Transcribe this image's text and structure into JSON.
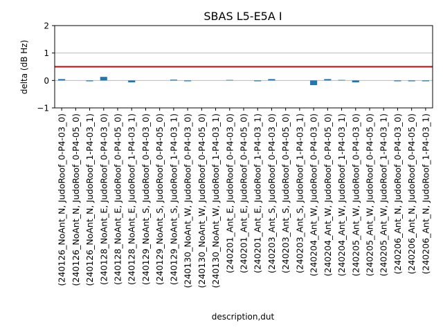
{
  "chart_data": {
    "type": "bar",
    "title": "SBAS L5-E5A I",
    "xlabel": "description,dut",
    "ylabel": "delta (dB Hz)",
    "ylim": [
      -1,
      2
    ],
    "yticks": [
      "−1",
      "0",
      "1",
      "2"
    ],
    "grid": "horizontal",
    "reference_line": {
      "y": 0.5,
      "color": "#cc0000"
    },
    "bar_color": "#1f77b4",
    "categories": [
      "(240126_NoAnt_N, JudoRoof_0-P4-03_0)",
      "(240126_NoAnt_N, JudoRoof_0-P4-05_0)",
      "(240126_NoAnt_N, JudoRoof_1-P4-03_1)",
      "(240128_NoAnt_E, JudoRoof_0-P4-03_0)",
      "(240128_NoAnt_E, JudoRoof_0-P4-05_0)",
      "(240128_NoAnt_E, JudoRoof_1-P4-03_1)",
      "(240129_NoAnt_S, JudoRoof_0-P4-03_0)",
      "(240129_NoAnt_S, JudoRoof_0-P4-05_0)",
      "(240129_NoAnt_S, JudoRoof_1-P4-03_1)",
      "(240130_NoAnt_W, JudoRoof_0-P4-03_0)",
      "(240130_NoAnt_W, JudoRoof_0-P4-05_0)",
      "(240130_NoAnt_W, JudoRoof_1-P4-03_1)",
      "(240201_Ant_E, JudoRoof_0-P4-03_0)",
      "(240201_Ant_E, JudoRoof_0-P4-05_0)",
      "(240201_Ant_E, JudoRoof_1-P4-03_1)",
      "(240203_Ant_S, JudoRoof_0-P4-03_0)",
      "(240203_Ant_S, JudoRoof_0-P4-05_0)",
      "(240203_Ant_S, JudoRoof_1-P4-03_1)",
      "(240204_Ant_W, JudoRoof_0-P4-03_0)",
      "(240204_Ant_W, JudoRoof_0-P4-05_0)",
      "(240204_Ant_W, JudoRoof_1-P4-03_1)",
      "(240205_Ant_W, JudoRoof_0-P4-03_0)",
      "(240205_Ant_W, JudoRoof_0-P4-05_0)",
      "(240205_Ant_W, JudoRoof_1-P4-03_1)",
      "(240206_Ant_N, JudoRoof_0-P4-03_0)",
      "(240206_Ant_N, JudoRoof_0-P4-05_0)",
      "(240206_Ant_N, JudoRoof_1-P4-03_1)"
    ],
    "values": [
      0.05,
      0.0,
      -0.03,
      0.13,
      0.0,
      -0.07,
      0.0,
      0.0,
      0.03,
      -0.03,
      0.0,
      0.0,
      0.02,
      0.0,
      -0.03,
      0.05,
      0.0,
      0.0,
      -0.17,
      0.05,
      0.02,
      -0.07,
      0.0,
      0.0,
      -0.03,
      -0.03,
      -0.03
    ]
  }
}
